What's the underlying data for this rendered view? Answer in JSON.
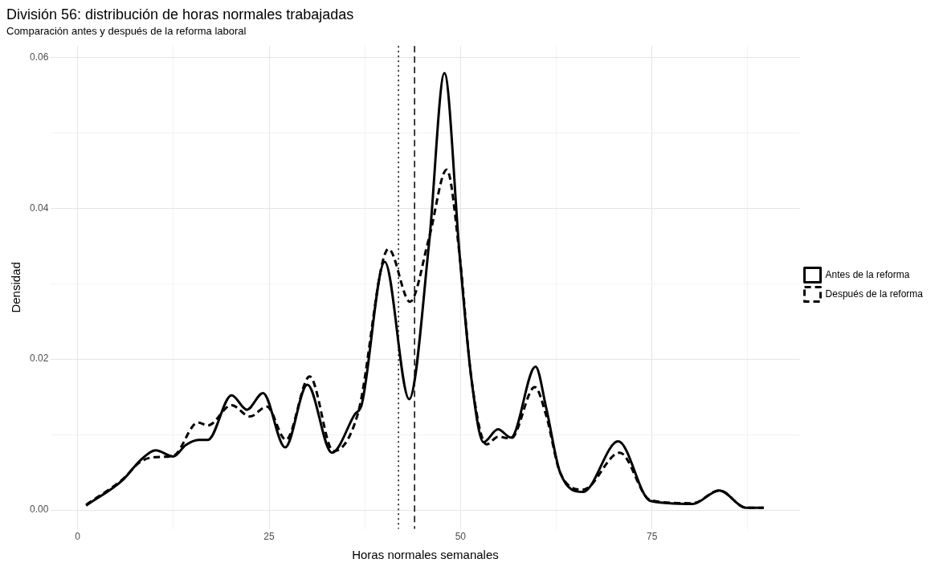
{
  "chart_data": {
    "type": "line",
    "title": "División 56: distribución de horas normales trabajadas",
    "subtitle": "Comparación antes y después de la reforma laboral",
    "xlabel": "Horas normales semanales",
    "ylabel": "Densidad",
    "xlim": [
      -3.5,
      94.3
    ],
    "ylim": [
      -0.0025,
      0.0615
    ],
    "xticks": [
      0,
      {
        "value": 12.5,
        "label": null
      },
      25,
      {
        "value": 37.5,
        "label": null
      },
      50,
      {
        "value": 62.5,
        "label": null
      },
      75,
      {
        "value": 87.5,
        "label": null
      }
    ],
    "yticks": [
      {
        "value": 0,
        "label": "0.00"
      },
      {
        "value": 0.01,
        "label": null
      },
      {
        "value": 0.02,
        "label": "0.02"
      },
      {
        "value": 0.03,
        "label": null
      },
      {
        "value": 0.04,
        "label": "0.04"
      },
      {
        "value": 0.05,
        "label": null
      },
      {
        "value": 0.06,
        "label": "0.06"
      }
    ],
    "grid": true,
    "legend": "right",
    "marker": "none",
    "ref_lines": [
      {
        "axis": "x",
        "value": 41.9,
        "color": "#000000",
        "line_style": "dotted"
      },
      {
        "axis": "x",
        "value": 44.0,
        "color": "#000000",
        "line_style": "dashed"
      }
    ],
    "series": [
      {
        "name": "Antes de la reforma",
        "color": "#000000",
        "line_style": "solid",
        "x": [
          1.1,
          5.9,
          8.2,
          10.2,
          12.5,
          14.1,
          15.8,
          17.0,
          20.1,
          22.1,
          24.2,
          27.1,
          30.0,
          33.2,
          36.2,
          37.1,
          40.1,
          43.3,
          45.9,
          47.9,
          49.9,
          51.4,
          53.0,
          54.9,
          56.6,
          59.8,
          61.2,
          63.0,
          66.0,
          70.6,
          74.8,
          80.3,
          83.8,
          87.3,
          89.6
        ],
        "values": [
          0.0006,
          0.004,
          0.0066,
          0.0079,
          0.0071,
          0.0086,
          0.0093,
          0.0093,
          0.0152,
          0.0133,
          0.0155,
          0.0083,
          0.0166,
          0.0076,
          0.0127,
          0.014,
          0.0329,
          0.0147,
          0.0354,
          0.0579,
          0.0336,
          0.0176,
          0.009,
          0.0107,
          0.0096,
          0.019,
          0.0135,
          0.005,
          0.0024,
          0.0091,
          0.0012,
          0.0008,
          0.0026,
          0.0003,
          0.0003
        ]
      },
      {
        "name": "Después de la reforma",
        "color": "#000000",
        "line_style": "dashed",
        "x": [
          1.1,
          5.9,
          8.2,
          10.0,
          12.5,
          15.7,
          17.0,
          20.1,
          22.5,
          24.7,
          27.2,
          30.3,
          33.4,
          36.6,
          40.6,
          43.4,
          45.9,
          48.2,
          49.9,
          51.4,
          53.4,
          54.9,
          56.6,
          59.7,
          61.2,
          63.0,
          66.0,
          70.8,
          74.8,
          80.3,
          83.8,
          87.3,
          89.6
        ],
        "values": [
          0.0007,
          0.0041,
          0.0064,
          0.007,
          0.0072,
          0.0116,
          0.0112,
          0.0139,
          0.0124,
          0.0137,
          0.0093,
          0.0177,
          0.0078,
          0.0128,
          0.0346,
          0.0276,
          0.0361,
          0.0451,
          0.0336,
          0.0176,
          0.0087,
          0.0097,
          0.0095,
          0.0163,
          0.0125,
          0.005,
          0.0027,
          0.0076,
          0.0013,
          0.0009,
          0.0026,
          0.0003,
          0.0003
        ]
      }
    ]
  }
}
